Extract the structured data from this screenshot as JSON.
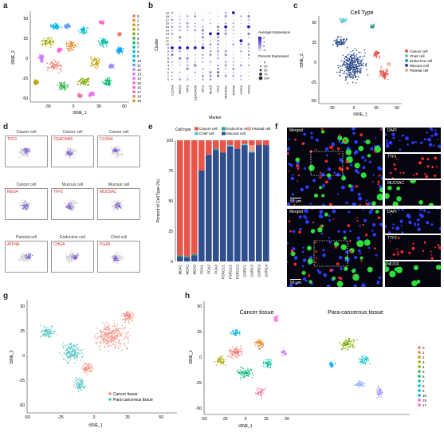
{
  "panels": {
    "a": {
      "label": "a",
      "xlabel": "tSNE_1",
      "ylabel": "tSNE_2",
      "xticks": [
        "-30",
        "0",
        "30",
        "60"
      ],
      "yticks": [
        "50",
        "25",
        "0",
        "-25",
        "-50"
      ],
      "legend": [
        "0",
        "1",
        "2",
        "3",
        "4",
        "5",
        "6",
        "7",
        "8",
        "9",
        "10",
        "11",
        "12",
        "13",
        "14",
        "15",
        "16",
        "17",
        "18",
        "19"
      ]
    },
    "b": {
      "label": "b",
      "xlabel": "Marker",
      "ylabel": "Cluster",
      "markers": [
        "CLDN4",
        "REG4",
        "TFF3",
        "CEACAM6",
        "TFF2",
        "MUC6",
        "TFF1",
        "MUC5AC",
        "ATP4A",
        "CHGA",
        "PGA3"
      ],
      "clusters": [
        "19",
        "18",
        "17",
        "16",
        "15",
        "14",
        "13",
        "12",
        "11",
        "10",
        "9",
        "8",
        "7",
        "6",
        "5",
        "4",
        "3",
        "2",
        "1",
        "0"
      ],
      "legend_expr_title": "Average Expression",
      "legend_expr_ticks": [
        "2",
        "1",
        "0",
        "-1"
      ],
      "legend_pct_title": "Percent Expressed",
      "legend_pct_ticks": [
        "0",
        "25",
        "50",
        "75",
        "100"
      ]
    },
    "c": {
      "label": "c",
      "title": "Cell Type",
      "xlabel": "tSNE_1",
      "ylabel": "tSNE_2",
      "xticks": [
        "-30",
        "0",
        "30",
        "60"
      ],
      "yticks": [
        "50",
        "25",
        "0",
        "-25",
        "-50"
      ],
      "legend": [
        "Cancer cell",
        "Chief cell",
        "Endocrine cell",
        "Mucous cell",
        "Parietal cell"
      ]
    },
    "d": {
      "label": "d",
      "cells": [
        {
          "title": "Cancer cell",
          "gene": "TFF3"
        },
        {
          "title": "Cancer cell",
          "gene": "CEACAM6"
        },
        {
          "title": "Cancer cell",
          "gene": "CLDN4"
        },
        {
          "title": "Cancer cell",
          "gene": "REG4"
        },
        {
          "title": "Mucous cell",
          "gene": "TFF2"
        },
        {
          "title": "Mucous cell",
          "gene": "MUC5AC"
        },
        {
          "title": "Parietal cell",
          "gene": "ATP4A"
        },
        {
          "title": "Endocrine cell",
          "gene": "CHGA"
        },
        {
          "title": "Chief cell",
          "gene": "PGA3"
        }
      ]
    },
    "e": {
      "label": "e",
      "ylabel": "Percent of Cell Type (%)",
      "legend_title": "Cell type",
      "yticks": [
        "100",
        "75",
        "50",
        "25",
        "0"
      ]
    },
    "f": {
      "label": "f",
      "top_tag": "Merged",
      "bottom_tag": "Merged",
      "top_side": [
        "DAPI",
        "TTF1",
        "MUC5AC"
      ],
      "bottom_side": [
        "DAPI",
        "TTF2",
        "MUC6"
      ],
      "scale": "50 μm"
    },
    "g": {
      "label": "g",
      "xlabel": "tSNE_1",
      "ylabel": "tSNE_2",
      "xticks": [
        "-50",
        "-25",
        "0",
        "25",
        "50"
      ],
      "yticks": [
        "50",
        "25",
        "0",
        "-25",
        "-50"
      ],
      "legend": [
        "Cancer tissue",
        "Para-cancerous tissue"
      ]
    },
    "h": {
      "label": "h",
      "xlabel": "tSNE_1",
      "ylabel": "tSNE_2",
      "title_left": "Cancer tissue",
      "title_right": "Para-cancerous tissue",
      "xticks": [
        "-50",
        "-25",
        "0",
        "25",
        "50"
      ],
      "yticks": [
        "50",
        "25",
        "0",
        "-25",
        "-50"
      ],
      "legend": [
        "0",
        "1",
        "2",
        "3",
        "4",
        "5",
        "6",
        "7",
        "8",
        "9",
        "10",
        "15",
        "17"
      ]
    }
  },
  "colors": {
    "cluster": [
      "#f2746a",
      "#e58a2a",
      "#c9a000",
      "#a8a800",
      "#7cae00",
      "#33b14a",
      "#00ba6f",
      "#00bfa3",
      "#00bfc4",
      "#00b4e4",
      "#00a5ff",
      "#619cff",
      "#a58aff",
      "#c77cff",
      "#e76bf3",
      "#fa62db",
      "#ff61c3",
      "#ff6a98",
      "#f8766d",
      "#b79f00"
    ],
    "cancer": "#e8564b",
    "chief": "#5ec7d9",
    "endocrine": "#2b9e8f",
    "mucous": "#2f4f8f",
    "parietal": "#f5a38a",
    "tissue_cancer": "#f08878",
    "tissue_para": "#4fc2c0"
  },
  "chart_data": [
    {
      "type": "bar",
      "title": "",
      "categories": [
        "MDA1",
        "MDA2",
        "MDA3",
        "PDA1",
        "PDA2",
        "PDA3",
        "PSRCC1",
        "PSRCC2",
        "PSRCC3",
        "GSRC1",
        "GSRC2",
        "GSRC3",
        "GSRC4"
      ],
      "ylabel": "Percent of Cell Type (%)",
      "ylim": [
        0,
        100
      ],
      "stacked": true,
      "series": [
        {
          "name": "Mucous cell",
          "values": [
            4,
            3,
            5,
            75,
            88,
            92,
            90,
            95,
            93,
            96,
            90,
            96,
            96
          ]
        },
        {
          "name": "Endocrine cell",
          "values": [
            1,
            1,
            1,
            0,
            0,
            1,
            0,
            0,
            0,
            0,
            0,
            0,
            0
          ]
        },
        {
          "name": "Chief cell",
          "values": [
            0,
            0,
            0,
            0,
            0,
            0,
            0,
            1,
            0,
            1,
            1,
            0,
            0
          ]
        },
        {
          "name": "Parietal cell",
          "values": [
            0,
            0,
            0,
            0,
            0,
            0,
            0,
            0,
            0,
            0,
            5,
            0,
            0
          ]
        },
        {
          "name": "Cancer cell",
          "values": [
            95,
            96,
            94,
            25,
            12,
            7,
            10,
            4,
            7,
            3,
            4,
            4,
            4
          ]
        }
      ]
    }
  ]
}
